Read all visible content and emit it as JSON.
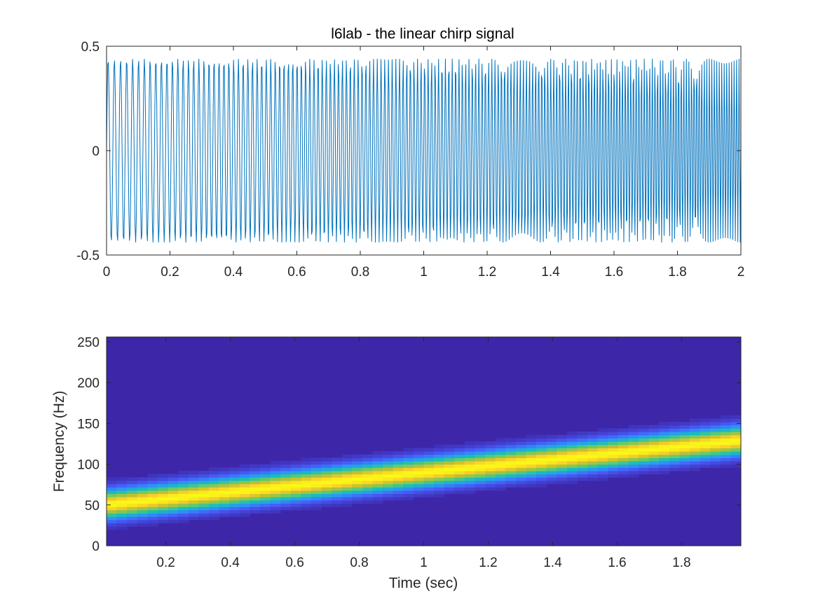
{
  "chart_data": [
    {
      "type": "line",
      "title": "l6lab - the linear chirp signal",
      "xlabel": "",
      "ylabel": "",
      "xlim": [
        0,
        2
      ],
      "ylim": [
        -0.5,
        0.5
      ],
      "x_ticks": [
        "0",
        "0.2",
        "0.4",
        "0.6",
        "0.8",
        "1",
        "1.2",
        "1.4",
        "1.6",
        "1.8",
        "2"
      ],
      "y_ticks": [
        "-0.5",
        "0",
        "0.5"
      ],
      "grid": false,
      "series": [
        {
          "color": "#0072BD",
          "amplitude": 0.44,
          "start_frequency_hz": 50,
          "end_frequency_hz": 130,
          "sample_rate_hz": 512,
          "t_start": 0,
          "t_end": 2
        }
      ]
    },
    {
      "type": "heatmap",
      "title": "",
      "xlabel": "Time (sec)",
      "ylabel": "Frequency (Hz)",
      "xlim": [
        0.016,
        1.984
      ],
      "ylim": [
        0,
        256
      ],
      "x_ticks": [
        "0.2",
        "0.4",
        "0.6",
        "0.8",
        "1",
        "1.2",
        "1.4",
        "1.6",
        "1.8"
      ],
      "y_ticks": [
        "0",
        "50",
        "100",
        "150",
        "200",
        "250"
      ],
      "grid": false,
      "colormap": "parula",
      "background_color": "#3E26A8",
      "ridge": {
        "start_frequency_hz": 50,
        "end_frequency_hz": 130,
        "bandwidth_hz": 18
      }
    }
  ]
}
